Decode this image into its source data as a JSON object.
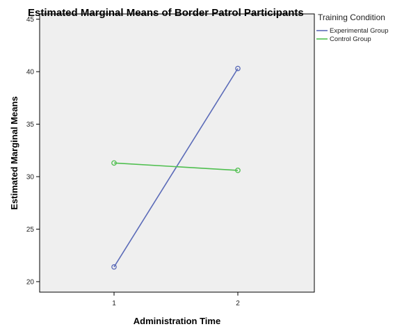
{
  "chart_data": {
    "type": "line",
    "title": "Estimated Marginal Means of Border Patrol Participants",
    "xlabel": "Administration Time",
    "ylabel": "Estimated Marginal Means",
    "categories": [
      "1",
      "2"
    ],
    "ylim": [
      19,
      45.5
    ],
    "yticks": [
      20,
      25,
      30,
      35,
      40,
      45
    ],
    "grid": false,
    "legend": {
      "title": "Training Condition",
      "placement": "right"
    },
    "series": [
      {
        "name": "Experimental Group",
        "color": "#5b6bb8",
        "values": [
          21.4,
          40.3
        ]
      },
      {
        "name": "Control Group",
        "color": "#4fbf4f",
        "values": [
          31.3,
          30.6
        ]
      }
    ]
  },
  "colors": {
    "plot_background": "#efefef",
    "axis": "#000000"
  }
}
